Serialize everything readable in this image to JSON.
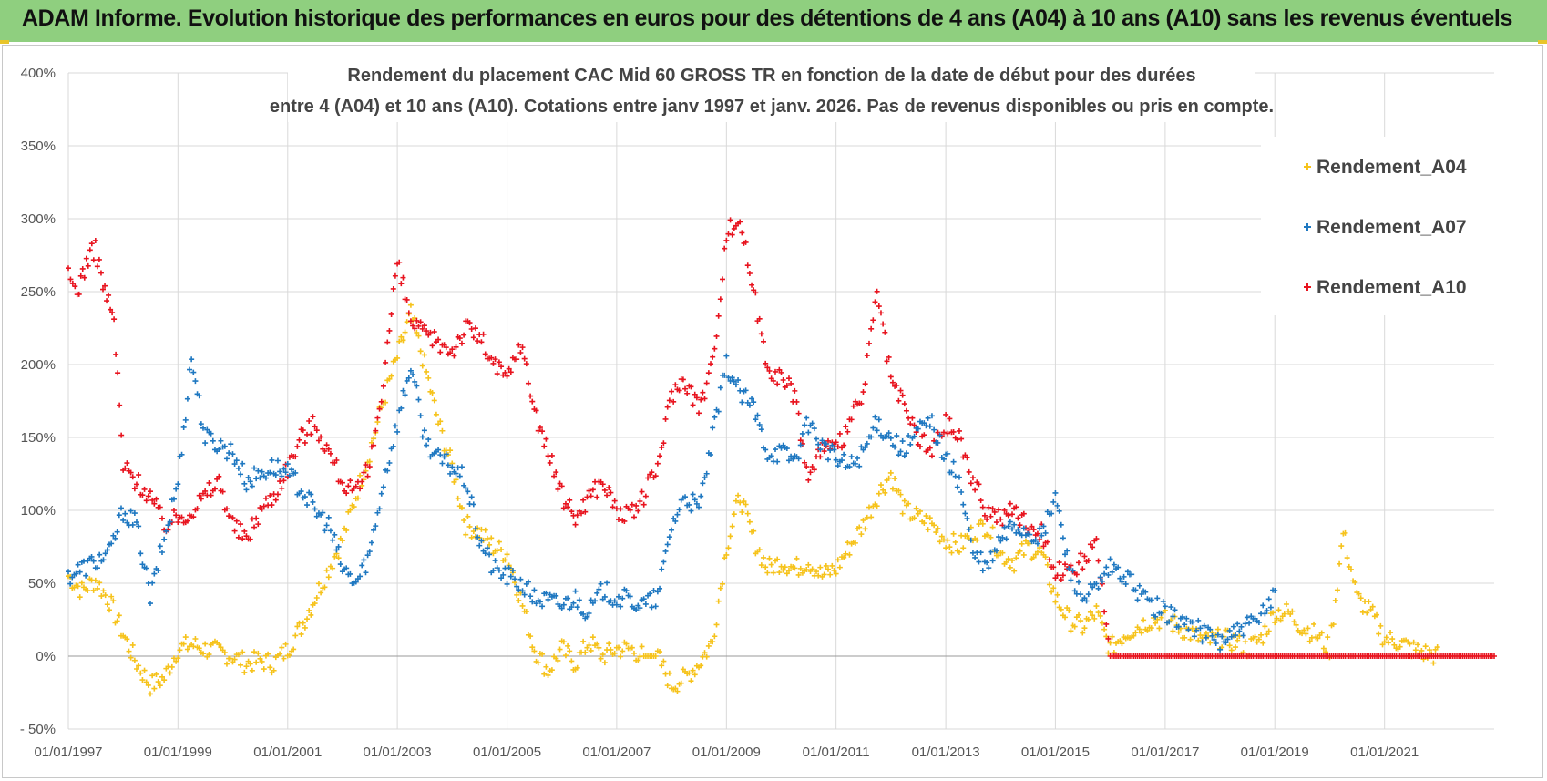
{
  "header": {
    "title": "ADAM Informe. Evolution historique des performances en euros pour des détentions de 4 ans (A04) à 10 ans (A10) sans les revenus éventuels"
  },
  "colors": {
    "banner": "#8fcf7f",
    "A04": "#f6c31c",
    "A07": "#1f78c1",
    "A10": "#e8141f",
    "grid": "#d9d9d9"
  },
  "chart_data": {
    "type": "scatter",
    "title_lines": [
      "Rendement du placement CAC Mid 60 GROSS TR en fonction de la date de début pour des durées",
      "entre 4 (A04) et 10 ans (A10).  Cotations entre janv 1997 et janv. 2026. Pas de revenus disponibles ou pris en compte."
    ],
    "xlabel": "",
    "ylabel": "",
    "x_range": [
      "1997-01-01",
      "2023-01-01"
    ],
    "y_range": [
      -50,
      400
    ],
    "y_ticks": [
      -50,
      0,
      50,
      100,
      150,
      200,
      250,
      300,
      350,
      400
    ],
    "y_tick_labels": [
      "- 50%",
      "0%",
      "50%",
      "100%",
      "150%",
      "200%",
      "250%",
      "300%",
      "350%",
      "400%"
    ],
    "x_tick_labels": [
      "01/01/1997",
      "01/01/1999",
      "01/01/2001",
      "01/01/2003",
      "01/01/2005",
      "01/01/2007",
      "01/01/2009",
      "01/01/2011",
      "01/01/2013",
      "01/01/2015",
      "01/01/2017",
      "01/01/2019",
      "01/01/2021"
    ],
    "x_tick_dates": [
      "1997-01-01",
      "1999-01-01",
      "2001-01-01",
      "2003-01-01",
      "2005-01-01",
      "2007-01-01",
      "2009-01-01",
      "2011-01-01",
      "2013-01-01",
      "2015-01-01",
      "2017-01-01",
      "2019-01-01",
      "2021-01-01"
    ],
    "grid": true,
    "legend_position": "top-right",
    "marker": "+",
    "series": [
      {
        "name": "Rendement_A04",
        "x": [
          "1997-01-01",
          "1997-04-01",
          "1997-07-01",
          "1997-10-01",
          "1998-01-01",
          "1998-04-01",
          "1998-07-01",
          "1998-10-01",
          "1999-01-01",
          "1999-04-01",
          "1999-07-01",
          "1999-10-01",
          "2000-01-01",
          "2000-04-01",
          "2000-07-01",
          "2000-10-01",
          "2001-01-01",
          "2001-04-01",
          "2001-07-01",
          "2001-10-01",
          "2002-01-01",
          "2002-04-01",
          "2002-07-01",
          "2002-10-01",
          "2003-01-01",
          "2003-04-01",
          "2003-07-01",
          "2003-10-01",
          "2004-01-01",
          "2004-04-01",
          "2004-07-01",
          "2004-10-01",
          "2005-01-01",
          "2005-04-01",
          "2005-07-01",
          "2005-10-01",
          "2006-01-01",
          "2006-04-01",
          "2006-07-01",
          "2006-10-01",
          "2007-01-01",
          "2007-04-01",
          "2007-07-01",
          "2007-10-01",
          "2008-01-01",
          "2008-04-01",
          "2008-07-01",
          "2008-10-01",
          "2009-01-01",
          "2009-04-01",
          "2009-07-01",
          "2009-10-01",
          "2010-01-01",
          "2010-04-01",
          "2010-07-01",
          "2010-10-01",
          "2011-01-01",
          "2011-04-01",
          "2011-07-01",
          "2011-10-01",
          "2012-01-01",
          "2012-04-01",
          "2012-07-01",
          "2012-10-01",
          "2013-01-01",
          "2013-04-01",
          "2013-07-01",
          "2013-10-01",
          "2014-01-01",
          "2014-04-01",
          "2014-07-01",
          "2014-10-01",
          "2015-01-01",
          "2015-04-01",
          "2015-07-01",
          "2015-10-01",
          "2016-01-01",
          "2016-04-01",
          "2016-07-01",
          "2016-10-01",
          "2017-01-01",
          "2017-04-01",
          "2017-07-01",
          "2017-10-01",
          "2018-01-01",
          "2018-04-01",
          "2018-07-01",
          "2018-10-01",
          "2019-01-01",
          "2019-04-01",
          "2019-07-01",
          "2019-10-01",
          "2020-01-01",
          "2020-04-01",
          "2020-07-01",
          "2020-10-01",
          "2021-01-01",
          "2021-04-01",
          "2021-07-01",
          "2021-10-01",
          "2022-01-01"
        ],
        "values": [
          55,
          45,
          52,
          38,
          15,
          -5,
          -20,
          -15,
          5,
          8,
          5,
          3,
          0,
          -5,
          -3,
          -5,
          5,
          20,
          40,
          60,
          80,
          110,
          140,
          175,
          205,
          235,
          200,
          160,
          130,
          90,
          85,
          75,
          70,
          40,
          5,
          -10,
          5,
          -5,
          10,
          0,
          5,
          5,
          0,
          0,
          -20,
          -15,
          -5,
          10,
          75,
          110,
          80,
          60,
          65,
          60,
          65,
          55,
          60,
          75,
          90,
          110,
          125,
          100,
          95,
          90,
          80,
          75,
          85,
          90,
          70,
          65,
          75,
          70,
          40,
          25,
          20,
          30,
          5,
          15,
          20,
          25,
          25,
          20,
          15,
          10,
          12,
          10,
          5,
          12,
          30,
          30,
          20,
          15,
          5,
          85,
          40,
          30,
          12,
          10,
          5,
          2,
          0
        ]
      },
      {
        "name": "Rendement_A07",
        "x": [
          "1997-01-01",
          "1997-04-01",
          "1997-07-01",
          "1997-10-01",
          "1998-01-01",
          "1998-04-01",
          "1998-07-01",
          "1998-10-01",
          "1999-01-01",
          "1999-04-01",
          "1999-07-01",
          "1999-10-01",
          "2000-01-01",
          "2000-04-01",
          "2000-07-01",
          "2000-10-01",
          "2001-01-01",
          "2001-04-01",
          "2001-07-01",
          "2001-10-01",
          "2002-01-01",
          "2002-04-01",
          "2002-07-01",
          "2002-10-01",
          "2003-01-01",
          "2003-04-01",
          "2003-07-01",
          "2003-10-01",
          "2004-01-01",
          "2004-04-01",
          "2004-07-01",
          "2004-10-01",
          "2005-01-01",
          "2005-04-01",
          "2005-07-01",
          "2005-10-01",
          "2006-01-01",
          "2006-04-01",
          "2006-07-01",
          "2006-10-01",
          "2007-01-01",
          "2007-04-01",
          "2007-07-01",
          "2007-10-01",
          "2008-01-01",
          "2008-04-01",
          "2008-07-01",
          "2008-10-01",
          "2009-01-01",
          "2009-04-01",
          "2009-07-01",
          "2009-10-01",
          "2010-01-01",
          "2010-04-01",
          "2010-07-01",
          "2010-10-01",
          "2011-01-01",
          "2011-04-01",
          "2011-07-01",
          "2011-10-01",
          "2012-01-01",
          "2012-04-01",
          "2012-07-01",
          "2012-10-01",
          "2013-01-01",
          "2013-04-01",
          "2013-07-01",
          "2013-10-01",
          "2014-01-01",
          "2014-04-01",
          "2014-07-01",
          "2014-10-01",
          "2015-01-01",
          "2015-04-01",
          "2015-07-01",
          "2015-10-01",
          "2016-01-01",
          "2016-04-01",
          "2016-07-01",
          "2016-10-01",
          "2017-01-01",
          "2017-04-01",
          "2017-07-01",
          "2017-10-01",
          "2018-01-01",
          "2018-04-01",
          "2018-07-01",
          "2018-10-01",
          "2019-01-01"
        ],
        "values": [
          55,
          60,
          65,
          70,
          100,
          90,
          40,
          80,
          120,
          205,
          150,
          145,
          140,
          120,
          125,
          130,
          125,
          115,
          100,
          90,
          60,
          50,
          70,
          120,
          160,
          200,
          150,
          135,
          130,
          120,
          80,
          60,
          55,
          50,
          40,
          38,
          35,
          40,
          30,
          45,
          40,
          38,
          35,
          40,
          90,
          110,
          100,
          150,
          200,
          180,
          170,
          140,
          140,
          135,
          160,
          145,
          135,
          130,
          140,
          160,
          150,
          140,
          155,
          160,
          135,
          120,
          70,
          60,
          80,
          90,
          85,
          80,
          110,
          60,
          40,
          45,
          60,
          55,
          45,
          35,
          30,
          25,
          20,
          15,
          10,
          15,
          20,
          25,
          45
        ]
      },
      {
        "name": "Rendement_A10",
        "x": [
          "1997-01-01",
          "1997-03-01",
          "1997-05-01",
          "1997-07-01",
          "1997-09-01",
          "1997-11-01",
          "1998-01-01",
          "1998-04-01",
          "1998-07-01",
          "1998-10-01",
          "1999-01-01",
          "1999-04-01",
          "1999-07-01",
          "1999-10-01",
          "2000-01-01",
          "2000-04-01",
          "2000-07-01",
          "2000-10-01",
          "2001-01-01",
          "2001-04-01",
          "2001-07-01",
          "2001-10-01",
          "2002-01-01",
          "2002-04-01",
          "2002-07-01",
          "2002-10-01",
          "2003-01-01",
          "2003-04-01",
          "2003-07-01",
          "2003-10-01",
          "2004-01-01",
          "2004-04-01",
          "2004-07-01",
          "2004-10-01",
          "2005-01-01",
          "2005-04-01",
          "2005-07-01",
          "2005-10-01",
          "2006-01-01",
          "2006-04-01",
          "2006-07-01",
          "2006-10-01",
          "2007-01-01",
          "2007-04-01",
          "2007-07-01",
          "2007-10-01",
          "2008-01-01",
          "2008-04-01",
          "2008-07-01",
          "2008-10-01",
          "2009-01-01",
          "2009-04-01",
          "2009-07-01",
          "2009-10-01",
          "2010-01-01",
          "2010-04-01",
          "2010-07-01",
          "2010-10-01",
          "2011-01-01",
          "2011-04-01",
          "2011-07-01",
          "2011-10-01",
          "2012-01-01",
          "2012-04-01",
          "2012-07-01",
          "2012-10-01",
          "2013-01-01",
          "2013-04-01",
          "2013-07-01",
          "2013-10-01",
          "2014-01-01",
          "2014-04-01",
          "2014-07-01",
          "2014-10-01",
          "2015-01-01",
          "2015-04-01",
          "2015-07-01",
          "2015-10-01",
          "2016-01-01",
          "2016-07-01",
          "2017-01-01",
          "2017-07-01",
          "2018-01-01",
          "2018-07-01",
          "2019-01-01",
          "2019-07-01",
          "2020-01-01",
          "2020-07-01",
          "2021-01-01",
          "2021-07-01",
          "2022-01-01",
          "2022-07-01",
          "2023-01-01"
        ],
        "values": [
          260,
          250,
          270,
          280,
          250,
          230,
          130,
          120,
          110,
          90,
          95,
          100,
          110,
          120,
          90,
          80,
          100,
          110,
          130,
          150,
          160,
          140,
          120,
          110,
          130,
          190,
          270,
          230,
          220,
          215,
          210,
          225,
          220,
          200,
          190,
          215,
          170,
          140,
          110,
          95,
          110,
          120,
          100,
          95,
          110,
          130,
          180,
          190,
          170,
          200,
          290,
          300,
          250,
          200,
          190,
          180,
          120,
          145,
          140,
          160,
          180,
          250,
          190,
          170,
          150,
          140,
          160,
          150,
          120,
          100,
          95,
          100,
          90,
          85,
          60,
          55,
          65,
          75,
          0,
          0,
          0,
          0,
          0,
          0,
          0,
          0,
          0,
          0,
          0,
          0,
          0,
          0,
          0
        ]
      }
    ]
  }
}
